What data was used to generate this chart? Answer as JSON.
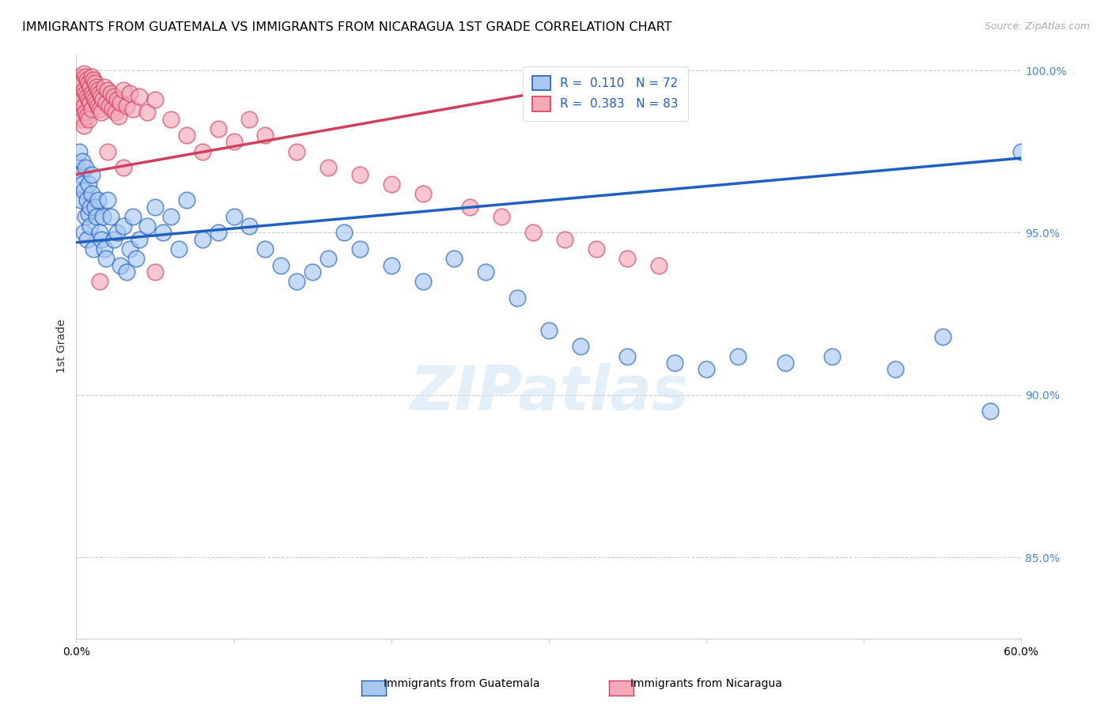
{
  "title": "IMMIGRANTS FROM GUATEMALA VS IMMIGRANTS FROM NICARAGUA 1ST GRADE CORRELATION CHART",
  "source": "Source: ZipAtlas.com",
  "ylabel": "1st Grade",
  "legend_label_blue": "Immigrants from Guatemala",
  "legend_label_pink": "Immigrants from Nicaragua",
  "r_blue": 0.11,
  "n_blue": 72,
  "r_pink": 0.383,
  "n_pink": 83,
  "xmin": 0.0,
  "xmax": 0.6,
  "ymin": 0.825,
  "ymax": 1.005,
  "yticks": [
    0.85,
    0.9,
    0.95,
    1.0
  ],
  "ytick_labels": [
    "85.0%",
    "90.0%",
    "95.0%",
    "100.0%"
  ],
  "xticks": [
    0.0,
    0.1,
    0.2,
    0.3,
    0.4,
    0.5,
    0.6
  ],
  "color_blue": "#a8c8f0",
  "color_pink": "#f4a8b8",
  "line_color_blue": "#2060c0",
  "line_color_pink": "#d04060",
  "watermark": "ZIPatlas",
  "blue_scatter_x": [
    0.001,
    0.002,
    0.003,
    0.003,
    0.004,
    0.004,
    0.005,
    0.005,
    0.006,
    0.006,
    0.007,
    0.007,
    0.008,
    0.008,
    0.009,
    0.009,
    0.01,
    0.01,
    0.011,
    0.012,
    0.013,
    0.014,
    0.015,
    0.016,
    0.017,
    0.018,
    0.019,
    0.02,
    0.022,
    0.024,
    0.026,
    0.028,
    0.03,
    0.032,
    0.034,
    0.036,
    0.038,
    0.04,
    0.045,
    0.05,
    0.055,
    0.06,
    0.065,
    0.07,
    0.08,
    0.09,
    0.1,
    0.11,
    0.12,
    0.13,
    0.14,
    0.15,
    0.16,
    0.17,
    0.18,
    0.2,
    0.22,
    0.24,
    0.26,
    0.28,
    0.3,
    0.32,
    0.35,
    0.38,
    0.4,
    0.42,
    0.45,
    0.48,
    0.52,
    0.55,
    0.58,
    0.6
  ],
  "blue_scatter_y": [
    0.97,
    0.975,
    0.96,
    0.968,
    0.965,
    0.972,
    0.95,
    0.963,
    0.955,
    0.97,
    0.948,
    0.96,
    0.965,
    0.956,
    0.958,
    0.952,
    0.962,
    0.968,
    0.945,
    0.958,
    0.955,
    0.96,
    0.95,
    0.948,
    0.955,
    0.945,
    0.942,
    0.96,
    0.955,
    0.948,
    0.95,
    0.94,
    0.952,
    0.938,
    0.945,
    0.955,
    0.942,
    0.948,
    0.952,
    0.958,
    0.95,
    0.955,
    0.945,
    0.96,
    0.948,
    0.95,
    0.955,
    0.952,
    0.945,
    0.94,
    0.935,
    0.938,
    0.942,
    0.95,
    0.945,
    0.94,
    0.935,
    0.942,
    0.938,
    0.93,
    0.92,
    0.915,
    0.912,
    0.91,
    0.908,
    0.912,
    0.91,
    0.912,
    0.908,
    0.918,
    0.895,
    0.975
  ],
  "pink_scatter_x": [
    0.001,
    0.001,
    0.002,
    0.002,
    0.002,
    0.003,
    0.003,
    0.003,
    0.004,
    0.004,
    0.004,
    0.005,
    0.005,
    0.005,
    0.005,
    0.006,
    0.006,
    0.006,
    0.007,
    0.007,
    0.007,
    0.008,
    0.008,
    0.008,
    0.009,
    0.009,
    0.01,
    0.01,
    0.01,
    0.011,
    0.011,
    0.012,
    0.012,
    0.013,
    0.013,
    0.014,
    0.014,
    0.015,
    0.015,
    0.016,
    0.016,
    0.017,
    0.018,
    0.019,
    0.02,
    0.021,
    0.022,
    0.023,
    0.024,
    0.025,
    0.026,
    0.027,
    0.028,
    0.03,
    0.032,
    0.034,
    0.036,
    0.04,
    0.045,
    0.05,
    0.06,
    0.07,
    0.08,
    0.09,
    0.1,
    0.11,
    0.12,
    0.14,
    0.16,
    0.18,
    0.2,
    0.22,
    0.25,
    0.27,
    0.29,
    0.31,
    0.33,
    0.35,
    0.37,
    0.05,
    0.03,
    0.02,
    0.015
  ],
  "pink_scatter_y": [
    0.995,
    0.99,
    0.998,
    0.993,
    0.988,
    0.997,
    0.992,
    0.986,
    0.996,
    0.991,
    0.985,
    0.999,
    0.994,
    0.989,
    0.983,
    0.998,
    0.993,
    0.987,
    0.997,
    0.992,
    0.986,
    0.996,
    0.991,
    0.985,
    0.995,
    0.99,
    0.998,
    0.993,
    0.988,
    0.997,
    0.992,
    0.996,
    0.991,
    0.995,
    0.99,
    0.994,
    0.989,
    0.993,
    0.988,
    0.992,
    0.987,
    0.991,
    0.995,
    0.99,
    0.994,
    0.989,
    0.993,
    0.988,
    0.992,
    0.987,
    0.991,
    0.986,
    0.99,
    0.994,
    0.989,
    0.993,
    0.988,
    0.992,
    0.987,
    0.991,
    0.985,
    0.98,
    0.975,
    0.982,
    0.978,
    0.985,
    0.98,
    0.975,
    0.97,
    0.968,
    0.965,
    0.962,
    0.958,
    0.955,
    0.95,
    0.948,
    0.945,
    0.942,
    0.94,
    0.938,
    0.97,
    0.975,
    0.935
  ],
  "blue_line_x": [
    0.0,
    0.6
  ],
  "blue_line_y": [
    0.947,
    0.973
  ],
  "pink_line_x": [
    0.0,
    0.35
  ],
  "pink_line_y": [
    0.968,
    0.998
  ]
}
